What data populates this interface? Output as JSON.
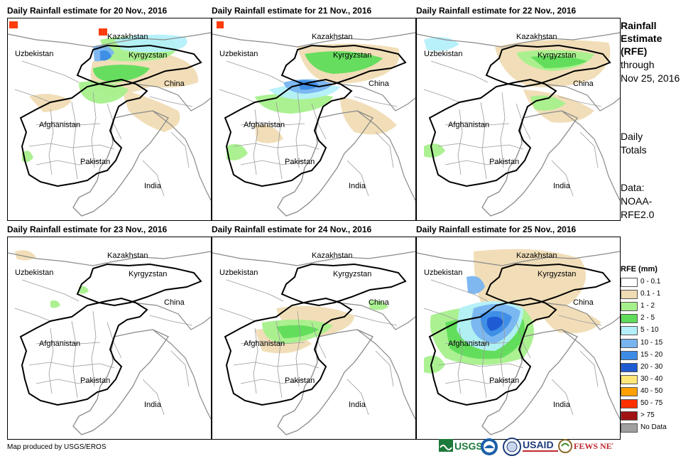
{
  "panels": [
    {
      "title": "Daily Rainfall estimate for 20 Nov., 2016"
    },
    {
      "title": "Daily Rainfall estimate for 21 Nov., 2016"
    },
    {
      "title": "Daily Rainfall estimate for 22 Nov., 2016"
    },
    {
      "title": "Daily Rainfall estimate for 23 Nov., 2016"
    },
    {
      "title": "Daily Rainfall estimate for 24 Nov., 2016"
    },
    {
      "title": "Daily Rainfall estimate for 25 Nov., 2016"
    }
  ],
  "countries": {
    "kazakhstan": "Kazakhstan",
    "uzbekistan": "Uzbekistan",
    "kyrgyzstan": "Kyrgyzstan",
    "china": "China",
    "afghanistan": "Afghanistan",
    "pakistan": "Pakistan",
    "india": "India"
  },
  "sidebar": {
    "line1": "Rainfall",
    "line2": "Estimate",
    "line3": "(RFE)",
    "line4": "through",
    "line5": "Nov 25, 2016",
    "daily1": "Daily",
    "daily2": "Totals",
    "data1": "Data:",
    "data2": "NOAA-",
    "data3": "RFE2.0"
  },
  "legend": {
    "title": "RFE (mm)",
    "items": [
      {
        "label": "0 - 0.1",
        "color": "#ffffff"
      },
      {
        "label": "0.1 - 1",
        "color": "#f0dcb4"
      },
      {
        "label": "1 - 2",
        "color": "#a6f08c"
      },
      {
        "label": "2 - 5",
        "color": "#5fdc5a"
      },
      {
        "label": "5 - 10",
        "color": "#b4f0fa"
      },
      {
        "label": "10 - 15",
        "color": "#78b4f0"
      },
      {
        "label": "15 - 20",
        "color": "#3c8ce6"
      },
      {
        "label": "20 - 30",
        "color": "#1e5ad2"
      },
      {
        "label": "30 - 40",
        "color": "#ffe678"
      },
      {
        "label": "40 - 50",
        "color": "#ffa000"
      },
      {
        "label": "50 - 75",
        "color": "#ff3200"
      },
      {
        "label": "> 75",
        "color": "#a01414"
      },
      {
        "label": "No Data",
        "color": "#a0a0a0"
      }
    ]
  },
  "credit": "Map produced by USGS/EROS",
  "logos": {
    "usgs": "USGS",
    "usaid": "USAID",
    "fewsnet": "FEWS NET"
  }
}
